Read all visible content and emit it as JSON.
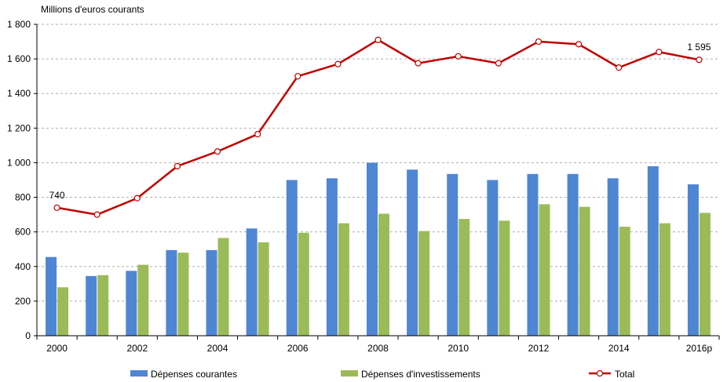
{
  "chart_data": {
    "type": "bar",
    "ylabel": "Millions d'euros  courants",
    "ylim": [
      0,
      1800
    ],
    "yticks": [
      0,
      200,
      400,
      600,
      800,
      1000,
      1200,
      1400,
      1600,
      1800
    ],
    "ytick_labels": [
      "0",
      "200",
      "400",
      "600",
      "800",
      "1 000",
      "1 200",
      "1 400",
      "1 600",
      "1 800"
    ],
    "categories": [
      "2000",
      "2001",
      "2002",
      "2003",
      "2004",
      "2005",
      "2006",
      "2007",
      "2008",
      "2009",
      "2010",
      "2011",
      "2012",
      "2013",
      "2014",
      "2015",
      "2016p"
    ],
    "xtick_labels": [
      "2000",
      "",
      "2002",
      "",
      "2004",
      "",
      "2006",
      "",
      "2008",
      "",
      "2010",
      "",
      "2012",
      "",
      "2014",
      "",
      "2016p"
    ],
    "grid": true,
    "series": [
      {
        "name": "Dépenses courantes",
        "type": "bar",
        "color": "#4f86d4",
        "values": [
          455,
          345,
          375,
          495,
          495,
          620,
          900,
          910,
          1000,
          960,
          935,
          900,
          935,
          935,
          910,
          980,
          875
        ]
      },
      {
        "name": "Dépenses d'investissements",
        "type": "bar",
        "color": "#9bbb59",
        "values": [
          280,
          350,
          410,
          480,
          565,
          540,
          595,
          650,
          705,
          605,
          675,
          665,
          760,
          745,
          630,
          650,
          710
        ]
      },
      {
        "name": "Total",
        "type": "line",
        "color": "#c00000",
        "values": [
          740,
          700,
          795,
          980,
          1065,
          1165,
          1500,
          1570,
          1710,
          1575,
          1615,
          1575,
          1700,
          1685,
          1550,
          1640,
          1595
        ]
      }
    ],
    "annotations": [
      {
        "series": "Total",
        "index": 0,
        "text": "740"
      },
      {
        "series": "Total",
        "index": 16,
        "text": "1 595"
      }
    ],
    "legend": "bottom"
  }
}
